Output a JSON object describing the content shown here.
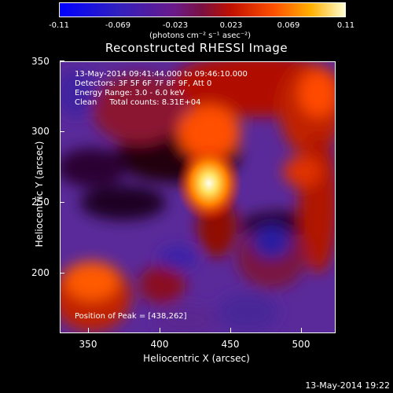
{
  "colorbar": {
    "ticks": [
      "-0.11",
      "-0.069",
      "-0.023",
      "0.023",
      "0.069",
      "0.11"
    ],
    "units": "(photons cm⁻² s⁻¹ asec⁻²)"
  },
  "title": "Reconstructed RHESSI Image",
  "annotations": {
    "time_range": "13-May-2014 09:41:44.000 to 09:46:10.000",
    "detectors": "Detectors: 3F 5F 6F 7F 8F 9F, Att 0",
    "energy": "Energy Range: 3.0 - 6.0 keV",
    "clean": "Clean     Total counts: 8.31E+04",
    "peak": "Position of Peak = [438,262]"
  },
  "axes": {
    "xlabel": "Heliocentric X (arcsec)",
    "ylabel": "Heliocentric Y (arcsec)",
    "xticks": [
      "350",
      "400",
      "450",
      "500"
    ],
    "yticks": [
      "350",
      "300",
      "250",
      "200"
    ]
  },
  "timestamp": "13-May-2014 19:22"
}
